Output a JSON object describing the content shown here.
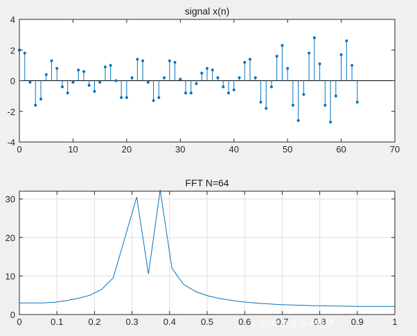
{
  "colors": {
    "figure_bg": "#f0f0f0",
    "axes_bg": "#ffffff",
    "series": "#0072bd",
    "axis": "#262626",
    "grid": "#dfdfdf"
  },
  "watermark": "CSDN @多多卡哇伊",
  "chart_data": [
    {
      "type": "stem",
      "title": "signal x(n)",
      "xlabel": "",
      "ylabel": "",
      "xlim": [
        0,
        70
      ],
      "ylim": [
        -4,
        4
      ],
      "xticks": [
        0,
        10,
        20,
        30,
        40,
        50,
        60,
        70
      ],
      "yticks": [
        -4,
        -2,
        0,
        2,
        4
      ],
      "grid": false,
      "series": [
        {
          "x": [
            0,
            1,
            2,
            3,
            4,
            5,
            6,
            7,
            8,
            9,
            10,
            11,
            12,
            13,
            14,
            15,
            16,
            17,
            18,
            19,
            20,
            21,
            22,
            23,
            24,
            25,
            26,
            27,
            28,
            29,
            30,
            31,
            32,
            33,
            34,
            35,
            36,
            37,
            38,
            39,
            40,
            41,
            42,
            43,
            44,
            45,
            46,
            47,
            48,
            49,
            50,
            51,
            52,
            53,
            54,
            55,
            56,
            57,
            58,
            59,
            60,
            61,
            62,
            63
          ],
          "values": [
            2.0,
            1.8,
            -0.1,
            -1.6,
            -1.2,
            0.4,
            1.3,
            0.8,
            -0.4,
            -0.8,
            -0.1,
            0.7,
            0.6,
            -0.3,
            -0.7,
            -0.1,
            0.9,
            1.0,
            0.0,
            -1.1,
            -1.1,
            0.2,
            1.4,
            1.3,
            -0.1,
            -1.3,
            -1.1,
            0.2,
            1.3,
            1.2,
            0.1,
            -0.8,
            -0.8,
            -0.2,
            0.5,
            0.8,
            0.7,
            0.2,
            -0.4,
            -0.8,
            -0.6,
            0.2,
            1.2,
            1.4,
            0.2,
            -1.4,
            -1.8,
            -0.4,
            1.6,
            2.3,
            0.8,
            -1.6,
            -2.6,
            -0.9,
            1.8,
            2.8,
            1.1,
            -1.6,
            -2.7,
            -1.0,
            1.7,
            2.6,
            1.0,
            -1.4
          ]
        }
      ]
    },
    {
      "type": "line",
      "title": "FFT N=64",
      "xlabel": "",
      "ylabel": "",
      "xlim": [
        0,
        1
      ],
      "ylim": [
        0,
        32
      ],
      "xticks": [
        0,
        0.1,
        0.2,
        0.3,
        0.4,
        0.5,
        0.6,
        0.7,
        0.8,
        0.9,
        1
      ],
      "xtick_labels": [
        "0",
        "0.1",
        "0.2",
        "0.3",
        "0.4",
        "0.5",
        "0.6",
        "0.7",
        "0.8",
        "0.9",
        "1"
      ],
      "yticks": [
        0,
        10,
        20,
        30
      ],
      "grid": true,
      "series": [
        {
          "x": [
            0,
            0.03125,
            0.0625,
            0.09375,
            0.125,
            0.15625,
            0.1875,
            0.21875,
            0.25,
            0.28125,
            0.3125,
            0.34375,
            0.375,
            0.40625,
            0.4375,
            0.46875,
            0.5,
            0.53125,
            0.5625,
            0.59375,
            0.625,
            0.65625,
            0.6875,
            0.71875,
            0.75,
            0.78125,
            0.8125,
            0.84375,
            0.875,
            0.90625,
            0.9375,
            0.96875,
            1.0
          ],
          "values": [
            3.0,
            3.0,
            3.0,
            3.2,
            3.6,
            4.2,
            5.0,
            6.5,
            9.5,
            20.0,
            30.5,
            10.5,
            32.3,
            12.0,
            7.8,
            6.0,
            4.9,
            4.2,
            3.7,
            3.3,
            3.0,
            2.8,
            2.6,
            2.5,
            2.4,
            2.3,
            2.25,
            2.2,
            2.15,
            2.1,
            2.1,
            2.1,
            2.1
          ]
        }
      ]
    }
  ]
}
